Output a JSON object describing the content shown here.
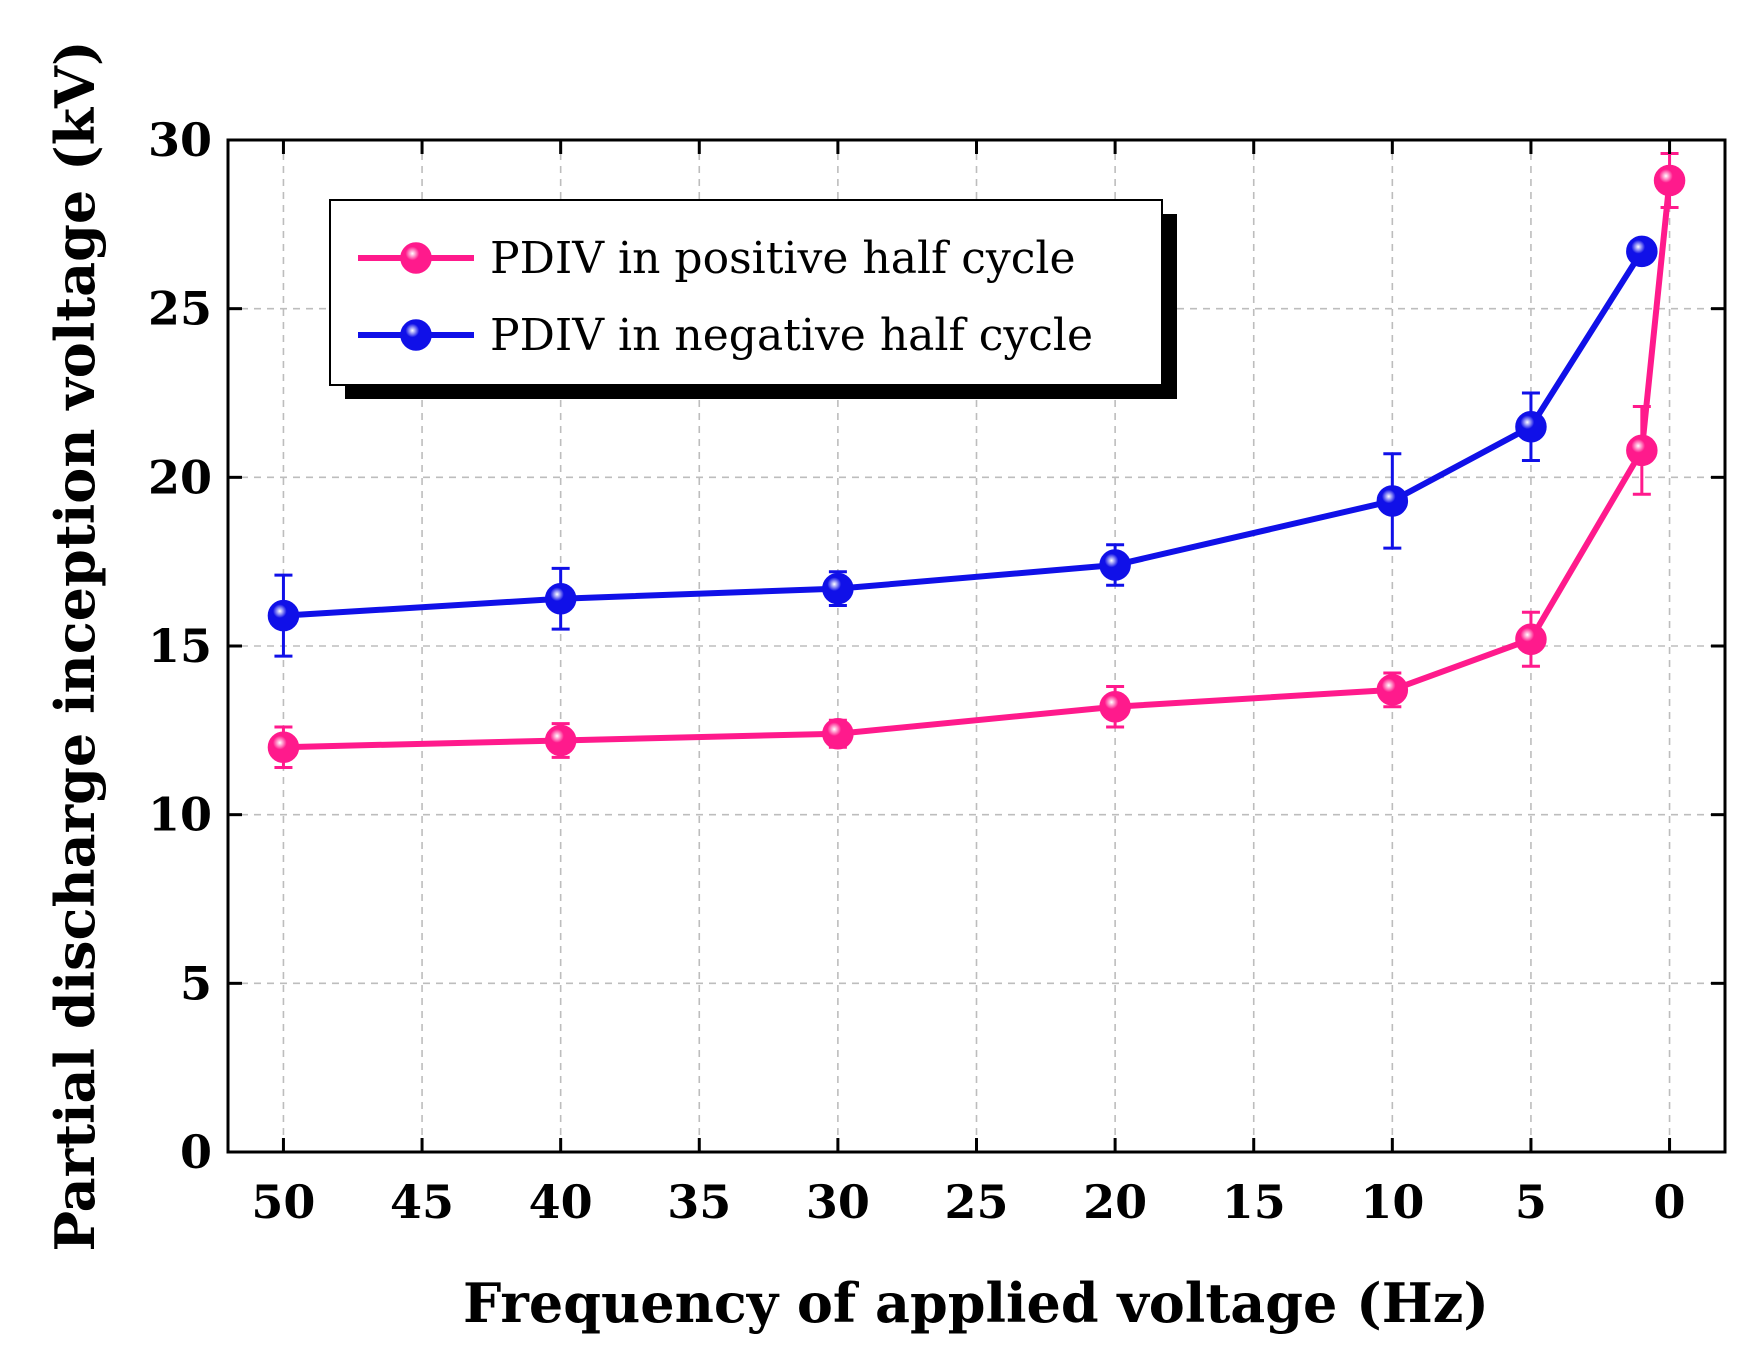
{
  "chart_data": {
    "type": "line",
    "xlabel": "Frequency of applied voltage (Hz)",
    "ylabel": "Partial discharge inception voltage (kV)",
    "xlim": [
      52,
      -2
    ],
    "ylim": [
      0,
      30
    ],
    "x_ticks": [
      50,
      45,
      40,
      35,
      30,
      25,
      20,
      15,
      10,
      5,
      0
    ],
    "y_ticks": [
      0,
      5,
      10,
      15,
      20,
      25,
      30
    ],
    "grid": true,
    "legend_position": "upper-left",
    "series": [
      {
        "name": "PDIV in positive half cycle",
        "color": "#ff1a8c",
        "x": [
          50,
          40,
          30,
          20,
          10,
          5,
          1,
          0
        ],
        "y": [
          12.0,
          12.2,
          12.4,
          13.2,
          13.7,
          15.2,
          20.8,
          28.8
        ],
        "error": [
          0.6,
          0.5,
          0.4,
          0.6,
          0.5,
          0.8,
          1.3,
          0.8
        ]
      },
      {
        "name": "PDIV in negative half cycle",
        "color": "#1010e8",
        "x": [
          50,
          40,
          30,
          20,
          10,
          5,
          1
        ],
        "y": [
          15.9,
          16.4,
          16.7,
          17.4,
          19.3,
          21.5,
          26.7
        ],
        "error": [
          1.2,
          0.9,
          0.5,
          0.6,
          1.4,
          1.0,
          0.2
        ]
      }
    ]
  }
}
